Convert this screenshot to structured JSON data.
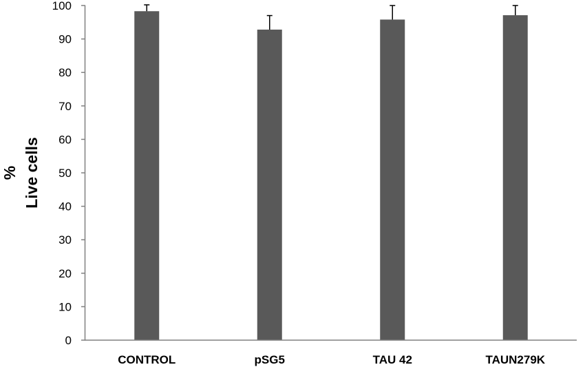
{
  "chart_data": {
    "type": "bar",
    "title": "",
    "xlabel": "",
    "ylabel_line1": "%",
    "ylabel_line2": "Live cells",
    "categories": [
      "CONTROL",
      "pSG5",
      "TAU 42",
      "TAUN279K"
    ],
    "values": [
      98.3,
      92.8,
      95.8,
      97.1
    ],
    "error_plus": [
      1.9,
      4.2,
      4.2,
      2.9
    ],
    "ylim": [
      0,
      100
    ],
    "yticks": [
      "0",
      "10",
      "20",
      "30",
      "40",
      "50",
      "60",
      "70",
      "80",
      "90",
      "100"
    ],
    "grid": false,
    "legend": "none",
    "bar_color": "#595959"
  }
}
